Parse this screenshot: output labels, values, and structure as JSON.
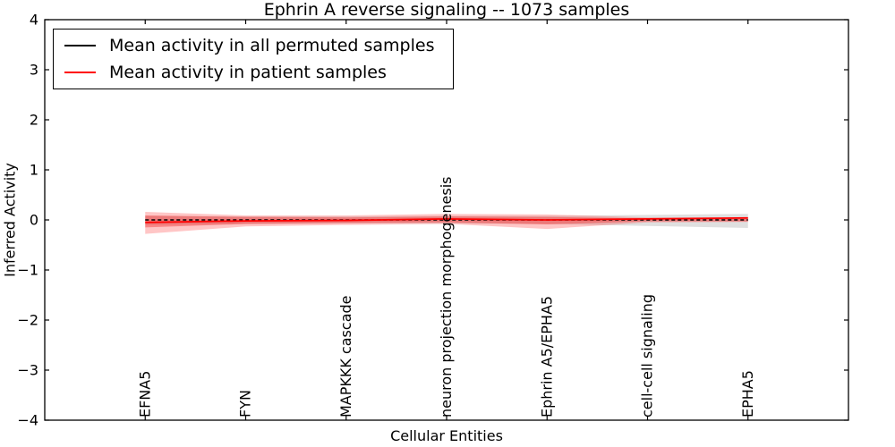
{
  "figure": {
    "background": "#ffffff"
  },
  "chart_data": {
    "type": "line",
    "title": "Ephrin A  reverse signaling -- 1073 samples",
    "xlabel": "Cellular Entities",
    "ylabel": "Inferred Activity",
    "ylim": [
      -4,
      4
    ],
    "yticks": [
      4,
      3,
      2,
      1,
      0,
      -1,
      -2,
      -3,
      -4
    ],
    "xlim_categories": [
      -1,
      7
    ],
    "grid": false,
    "legend_position": "upper left",
    "categories": [
      "EFNA5",
      "FYN",
      "MAPKKK cascade",
      "neuron projection morphogenesis",
      "Ephrin A5/EPHA5",
      "cell-cell signaling",
      "EPHA5"
    ],
    "series": [
      {
        "name": "Mean activity in all permuted samples",
        "color": "#000000",
        "style": "dashed",
        "values": [
          0.0,
          0.0,
          0.0,
          0.0,
          0.0,
          0.0,
          0.0
        ]
      },
      {
        "name": "Mean activity in patient samples",
        "color": "#ff0000",
        "style": "solid",
        "values": [
          -0.05,
          -0.02,
          -0.01,
          0.02,
          0.0,
          0.02,
          0.04
        ]
      }
    ],
    "bands": [
      {
        "name": "permuted-std-band",
        "color": "#bfbfbf",
        "opacity": 0.5,
        "high": [
          0.08,
          0.07,
          0.07,
          0.08,
          0.08,
          0.1,
          0.12
        ],
        "low": [
          -0.1,
          -0.08,
          -0.07,
          -0.07,
          -0.08,
          -0.12,
          -0.16
        ]
      },
      {
        "name": "patient-std-band-outer",
        "color": "#ff3333",
        "opacity": 0.28,
        "high": [
          0.16,
          0.09,
          0.09,
          0.12,
          0.11,
          0.05,
          0.05
        ],
        "low": [
          -0.28,
          -0.13,
          -0.1,
          -0.08,
          -0.18,
          -0.05,
          -0.04
        ]
      },
      {
        "name": "patient-std-band-inner",
        "color": "#ee2222",
        "opacity": 0.38,
        "high": [
          0.09,
          0.06,
          0.05,
          0.07,
          0.06,
          0.03,
          0.03
        ],
        "low": [
          -0.15,
          -0.08,
          -0.06,
          -0.05,
          -0.09,
          -0.03,
          -0.03
        ]
      }
    ]
  }
}
